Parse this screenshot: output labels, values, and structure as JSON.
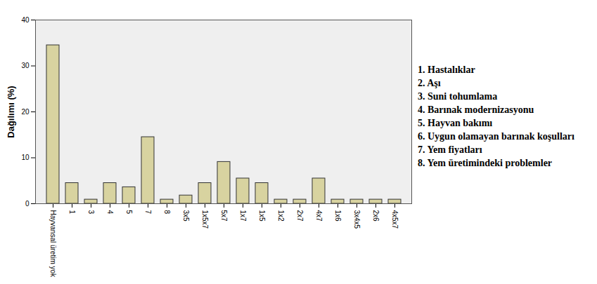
{
  "chart_data": {
    "type": "bar",
    "y_label": "Dağılımı (%)",
    "categories": [
      "Hayvansal üretim yok",
      "1",
      "3",
      "4",
      "5",
      "7",
      "8",
      "3x5",
      "1x5x7",
      "5x7",
      "1x7",
      "1x5",
      "1x2",
      "2x7",
      "4x7",
      "1x6",
      "3x4x5",
      "2x6",
      "4x5x7"
    ],
    "values": [
      34.5,
      4.5,
      0.9,
      4.5,
      3.6,
      14.5,
      0.9,
      1.8,
      4.5,
      9.1,
      5.5,
      4.5,
      0.9,
      0.9,
      5.5,
      0.9,
      0.9,
      0.9,
      0.9
    ],
    "color": "#d8d3a0",
    "ylim": [
      0,
      40
    ],
    "yticks": [
      0,
      10,
      20,
      30,
      40
    ],
    "grid": false,
    "annotations": [
      "1. Hastalıklar",
      "2. Aşı",
      "3. Suni tohumlama",
      "4. Barınak modernizasyonu",
      "5. Hayvan bakımı",
      "6. Uygun olamayan barınak koşulları",
      "7. Yem fiyatları",
      "8. Yem üretimindeki problemler"
    ]
  }
}
